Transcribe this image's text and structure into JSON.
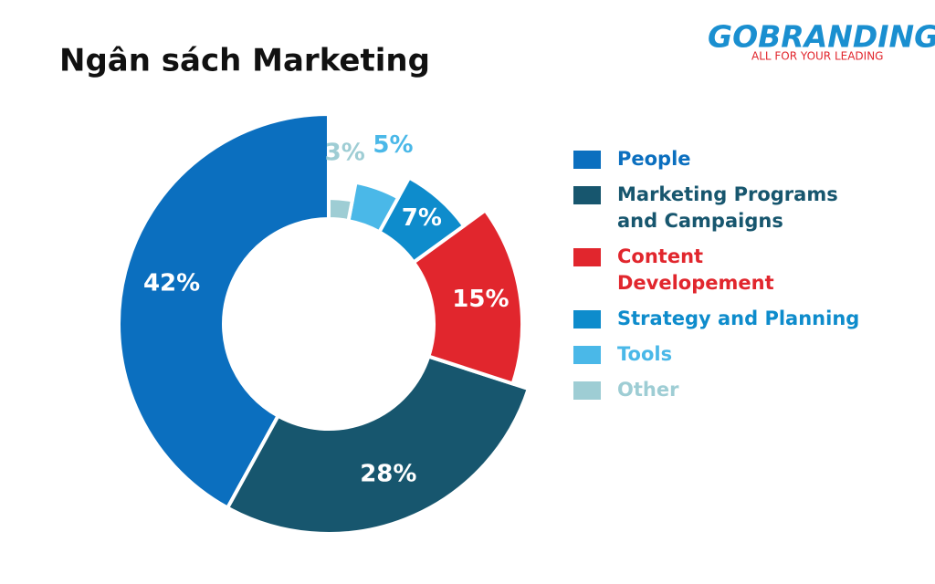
{
  "logo": {
    "name": "GOBRANDING",
    "tagline": "ALL FOR YOUR LEADING"
  },
  "chart_data": {
    "type": "donut",
    "title": "Ngân sách Marketing",
    "categories": [
      "People",
      "Marketing Programs and Campaigns",
      "Content Developement",
      "Strategy and Planning",
      "Tools",
      "Other"
    ],
    "values": [
      42,
      28,
      15,
      7,
      5,
      3
    ],
    "value_labels": [
      "42%",
      "28%",
      "15%",
      "7%",
      "5%",
      "3%"
    ],
    "colors": [
      "#0b6fbf",
      "#17566e",
      "#e1262d",
      "#0e8ccc",
      "#4ab8e8",
      "#9ecdd4"
    ],
    "legend": "right"
  }
}
